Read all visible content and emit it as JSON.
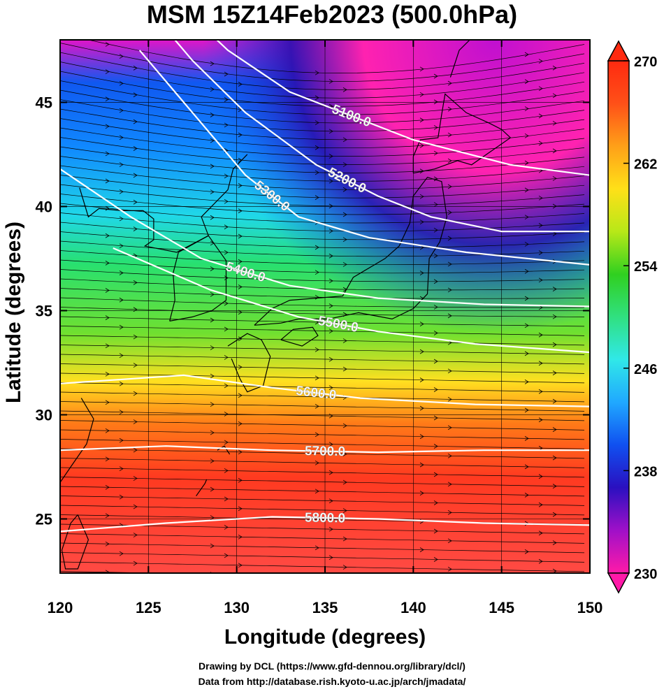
{
  "title": "MSM 15Z14Feb2023 (500.0hPa)",
  "x_axis": {
    "label": "Longitude (degrees)",
    "range": [
      120,
      150
    ],
    "ticks": [
      "120",
      "125",
      "130",
      "135",
      "140",
      "145",
      "150"
    ],
    "tick_values": [
      120,
      125,
      130,
      135,
      140,
      145,
      150
    ]
  },
  "y_axis": {
    "label": "Latitude  (degrees)",
    "range": [
      22.4,
      48
    ],
    "ticks": [
      "25",
      "30",
      "35",
      "40",
      "45"
    ],
    "tick_values": [
      25,
      30,
      35,
      40,
      45
    ]
  },
  "colorbar": {
    "range": [
      230,
      270
    ],
    "tick_labels": [
      "270",
      "262",
      "254",
      "246",
      "238",
      "230"
    ],
    "tick_values": [
      270,
      262,
      254,
      246,
      238,
      230
    ],
    "colors": [
      "#ff1aa8",
      "#a010c8",
      "#2a10c0",
      "#1050f0",
      "#20a8ff",
      "#30e8e8",
      "#30e080",
      "#30d020",
      "#b8e818",
      "#ffe018",
      "#ffa018",
      "#ff5018",
      "#ff2a10"
    ]
  },
  "contours": [
    {
      "label": "5100.0",
      "lat": [
        49.5,
        47.5,
        45.5,
        43.2,
        42.0,
        41.5
      ],
      "lon": [
        127.0,
        129.5,
        133.0,
        140.0,
        145.5,
        150.0
      ]
    },
    {
      "label": "5200.0",
      "lat": [
        49.5,
        47.0,
        44.5,
        42.0,
        40.5,
        39.5,
        38.8,
        38.8
      ],
      "lon": [
        125.0,
        127.5,
        130.5,
        134.5,
        138.0,
        141.0,
        145.0,
        150.0
      ]
    },
    {
      "label": "5300.0",
      "lat": [
        47.5,
        44.5,
        41.5,
        39.5,
        38.5,
        37.8,
        37.2
      ],
      "lon": [
        124.5,
        127.5,
        130.5,
        133.5,
        137.5,
        143.0,
        150.0
      ]
    },
    {
      "label": "5400.0",
      "lat": [
        41.8,
        39.5,
        37.5,
        36.2,
        35.6,
        35.3,
        35.2
      ],
      "lon": [
        120.0,
        124.0,
        128.0,
        133.0,
        138.0,
        144.0,
        150.0
      ]
    },
    {
      "label": "5500.0",
      "lat": [
        38.0,
        36.0,
        34.7,
        34.0,
        33.4,
        33.0
      ],
      "lon": [
        123.0,
        128.5,
        133.5,
        138.0,
        143.5,
        150.0
      ]
    },
    {
      "label": "5600.0",
      "lat": [
        31.5,
        31.9,
        31.3,
        30.8,
        30.5,
        30.4
      ],
      "lon": [
        120.0,
        127.0,
        132.0,
        137.0,
        143.5,
        150.0
      ]
    },
    {
      "label": "5700.0",
      "lat": [
        28.3,
        28.5,
        28.3,
        28.2,
        28.3,
        28.3
      ],
      "lon": [
        120.0,
        126.0,
        132.0,
        138.0,
        144.0,
        150.0
      ]
    },
    {
      "label": "5800.0",
      "lat": [
        24.4,
        24.8,
        25.1,
        25.0,
        24.8,
        24.7
      ],
      "lon": [
        120.0,
        126.0,
        132.0,
        138.0,
        144.0,
        150.0
      ]
    }
  ],
  "credits": {
    "line1": "Drawing by DCL (https://www.gfd-dennou.org/library/dcl/)",
    "line2": "Data from http://database.rish.kyoto-u.ac.jp/arch/jmadata/"
  }
}
